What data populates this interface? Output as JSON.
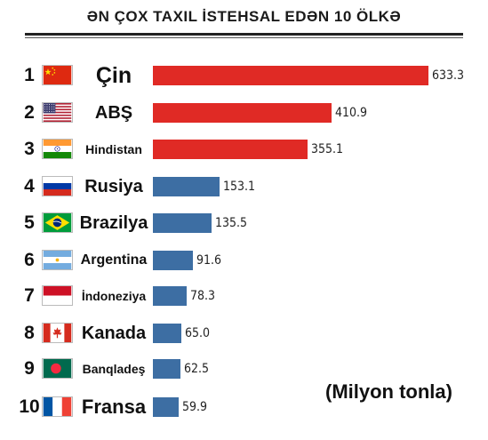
{
  "chart_data": {
    "type": "bar",
    "title": "ƏN ÇOX TAXIL İSTEHSAL EDƏN 10 ÖLKƏ",
    "unit": "(Milyon tonla)",
    "xlim": [
      0,
      633.3
    ],
    "colors": {
      "top": "#e02a25",
      "rest": "#3d6ea3"
    },
    "ranks": [
      "1",
      "2",
      "3",
      "4",
      "5",
      "6",
      "7",
      "8",
      "9",
      "10"
    ],
    "categories": [
      "Çin",
      "ABŞ",
      "Hindistan",
      "Rusiya",
      "Brazilya",
      "Argentina",
      "İndoneziya",
      "Kanada",
      "Banqladeş",
      "Fransa"
    ],
    "flags": [
      "china-flag-icon",
      "usa-flag-icon",
      "india-flag-icon",
      "russia-flag-icon",
      "brazil-flag-icon",
      "argentina-flag-icon",
      "indonesia-flag-icon",
      "canada-flag-icon",
      "bangladesh-flag-icon",
      "france-flag-icon"
    ],
    "values": [
      633.3,
      410.9,
      355.1,
      153.1,
      135.5,
      91.6,
      78.3,
      65.0,
      62.5,
      59.9
    ],
    "value_labels": [
      "633.3",
      "410.9",
      "355.1",
      "153.1",
      "135.5",
      "91.6",
      "78.3",
      "65.0",
      "62.5",
      "59.9"
    ]
  }
}
